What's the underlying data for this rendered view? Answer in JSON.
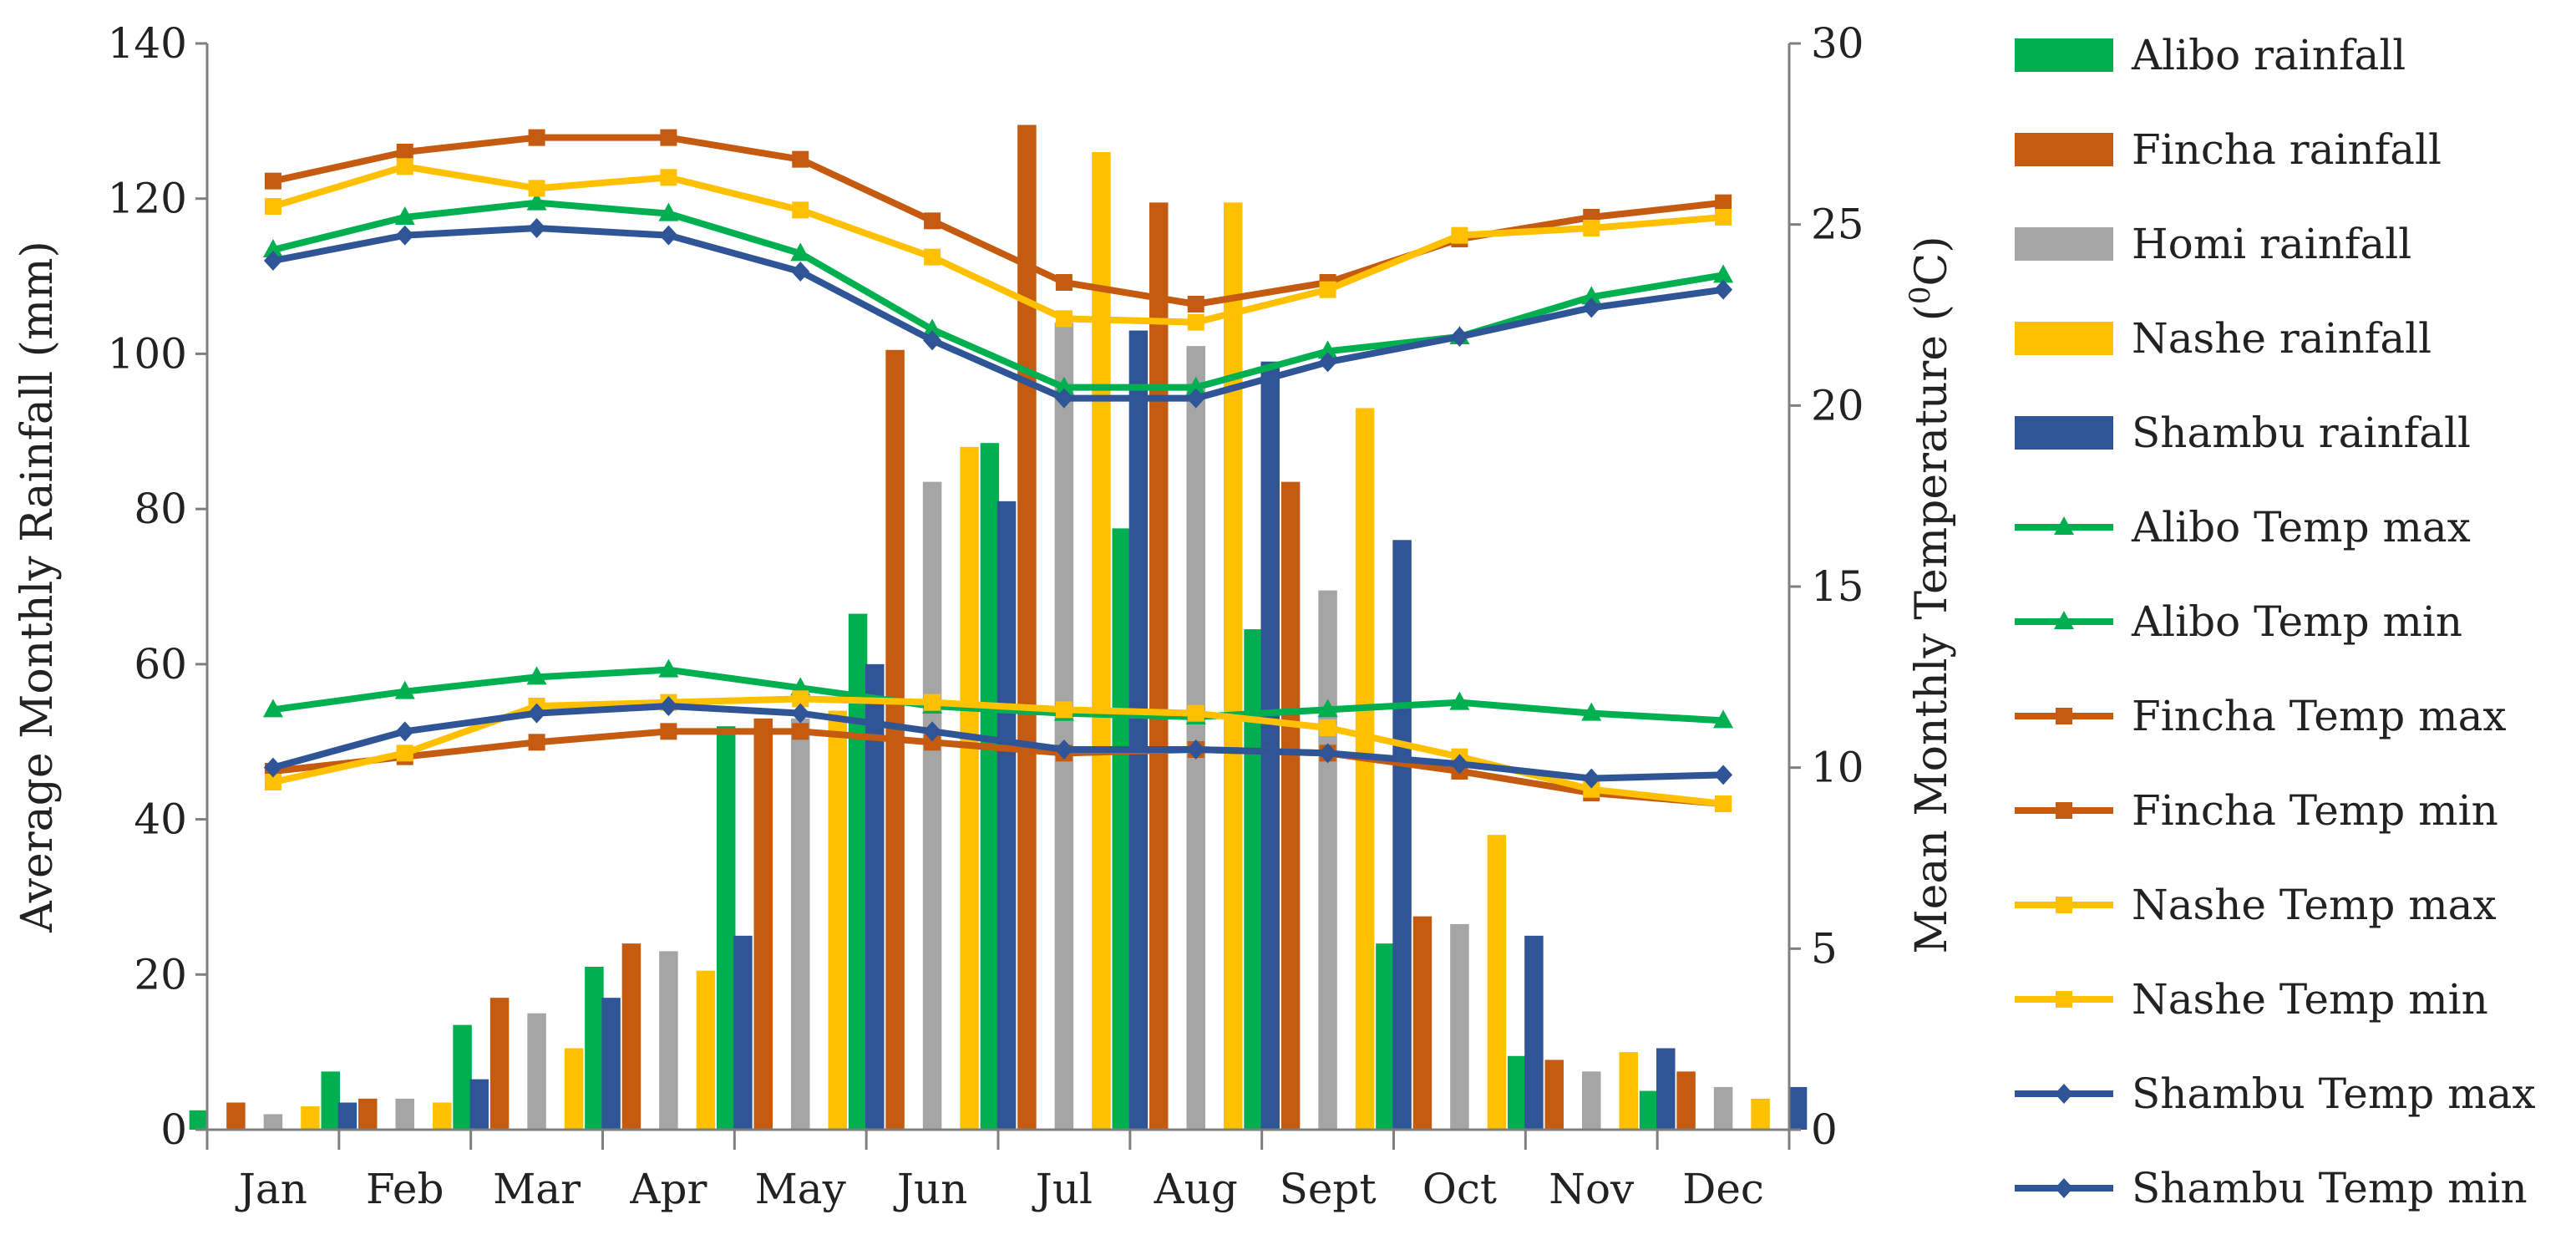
{
  "chart_data": {
    "type": "bar+line",
    "categories": [
      "Jan",
      "Feb",
      "Mar",
      "Apr",
      "May",
      "Jun",
      "Jul",
      "Aug",
      "Sept",
      "Oct",
      "Nov",
      "Dec"
    ],
    "left_axis": {
      "label": "Average  Monthly Rainfall (mm)",
      "min": 0,
      "max": 140,
      "step": 20,
      "ticks": [
        "0",
        "20",
        "40",
        "60",
        "80",
        "100",
        "120",
        "140"
      ]
    },
    "right_axis": {
      "label_main": "Mean Monthly Temperature (",
      "label_sup": "0",
      "label_end": "C)",
      "min": 0,
      "max": 30,
      "step": 5,
      "ticks": [
        "0",
        "5",
        "10",
        "15",
        "20",
        "25",
        "30"
      ]
    },
    "bar_series": [
      {
        "name": "Alibo rainfall",
        "color": "#00b050",
        "values": [
          2.5,
          7.5,
          13.5,
          21,
          52,
          66.5,
          88.5,
          77.5,
          64.5,
          24,
          9.5,
          5
        ]
      },
      {
        "name": "Fincha rainfall",
        "color": "#c55a11",
        "values": [
          3.5,
          4,
          17,
          24,
          53,
          100.5,
          129.5,
          119.5,
          83.5,
          27.5,
          9,
          7.5
        ]
      },
      {
        "name": "Homi rainfall",
        "color": "#a5a5a5",
        "values": [
          2,
          4,
          15,
          23,
          53,
          83.5,
          104,
          101,
          69.5,
          26.5,
          7.5,
          5.5
        ]
      },
      {
        "name": "Nashe rainfall",
        "color": "#ffc000",
        "values": [
          3,
          3.5,
          10.5,
          20.5,
          54,
          88,
          126,
          119.5,
          93,
          38,
          10,
          4
        ]
      },
      {
        "name": "Shambu rainfall",
        "color": "#2f5597",
        "values": [
          3.5,
          6.5,
          17,
          25,
          60,
          81,
          103,
          99,
          76,
          25,
          10.5,
          5.5
        ]
      }
    ],
    "line_series": [
      {
        "name": "Alibo Temp max",
        "color": "#00b050",
        "marker": "triangle",
        "values": [
          24.3,
          25.2,
          25.6,
          25.3,
          24.2,
          22.1,
          20.5,
          20.5,
          21.5,
          21.9,
          23.0,
          23.6
        ]
      },
      {
        "name": "Alibo Temp min",
        "color": "#00b050",
        "marker": "triangle",
        "values": [
          11.6,
          12.1,
          12.5,
          12.7,
          12.2,
          11.7,
          11.5,
          11.4,
          11.6,
          11.8,
          11.5,
          11.3
        ]
      },
      {
        "name": "Fincha Temp max",
        "color": "#c55a11",
        "marker": "square",
        "values": [
          26.2,
          27.0,
          27.4,
          27.4,
          26.8,
          25.1,
          23.4,
          22.8,
          23.4,
          24.6,
          25.2,
          25.6
        ]
      },
      {
        "name": "Fincha Temp min",
        "color": "#c55a11",
        "marker": "square",
        "values": [
          9.9,
          10.3,
          10.7,
          11.0,
          11.0,
          10.7,
          10.4,
          10.5,
          10.4,
          9.9,
          9.3,
          9.0
        ]
      },
      {
        "name": "Nashe Temp max",
        "color": "#ffc000",
        "marker": "square",
        "values": [
          25.5,
          26.6,
          26.0,
          26.3,
          25.4,
          24.1,
          22.4,
          22.3,
          23.2,
          24.7,
          24.9,
          25.2
        ]
      },
      {
        "name": "Nashe Temp min",
        "color": "#ffc000",
        "marker": "square",
        "values": [
          9.6,
          10.4,
          11.7,
          11.8,
          11.9,
          11.8,
          11.6,
          11.5,
          11.1,
          10.3,
          9.4,
          9.0
        ]
      },
      {
        "name": "Shambu Temp max",
        "color": "#2f5597",
        "marker": "diamond",
        "values": [
          24.0,
          24.7,
          24.9,
          24.7,
          23.7,
          21.8,
          20.2,
          20.2,
          21.2,
          21.9,
          22.7,
          23.2
        ]
      },
      {
        "name": "Shambu Temp min",
        "color": "#2f5597",
        "marker": "diamond",
        "values": [
          10.0,
          11.0,
          11.5,
          11.7,
          11.5,
          11.0,
          10.5,
          10.5,
          10.4,
          10.1,
          9.7,
          9.8
        ]
      }
    ],
    "legend_position": "right"
  }
}
